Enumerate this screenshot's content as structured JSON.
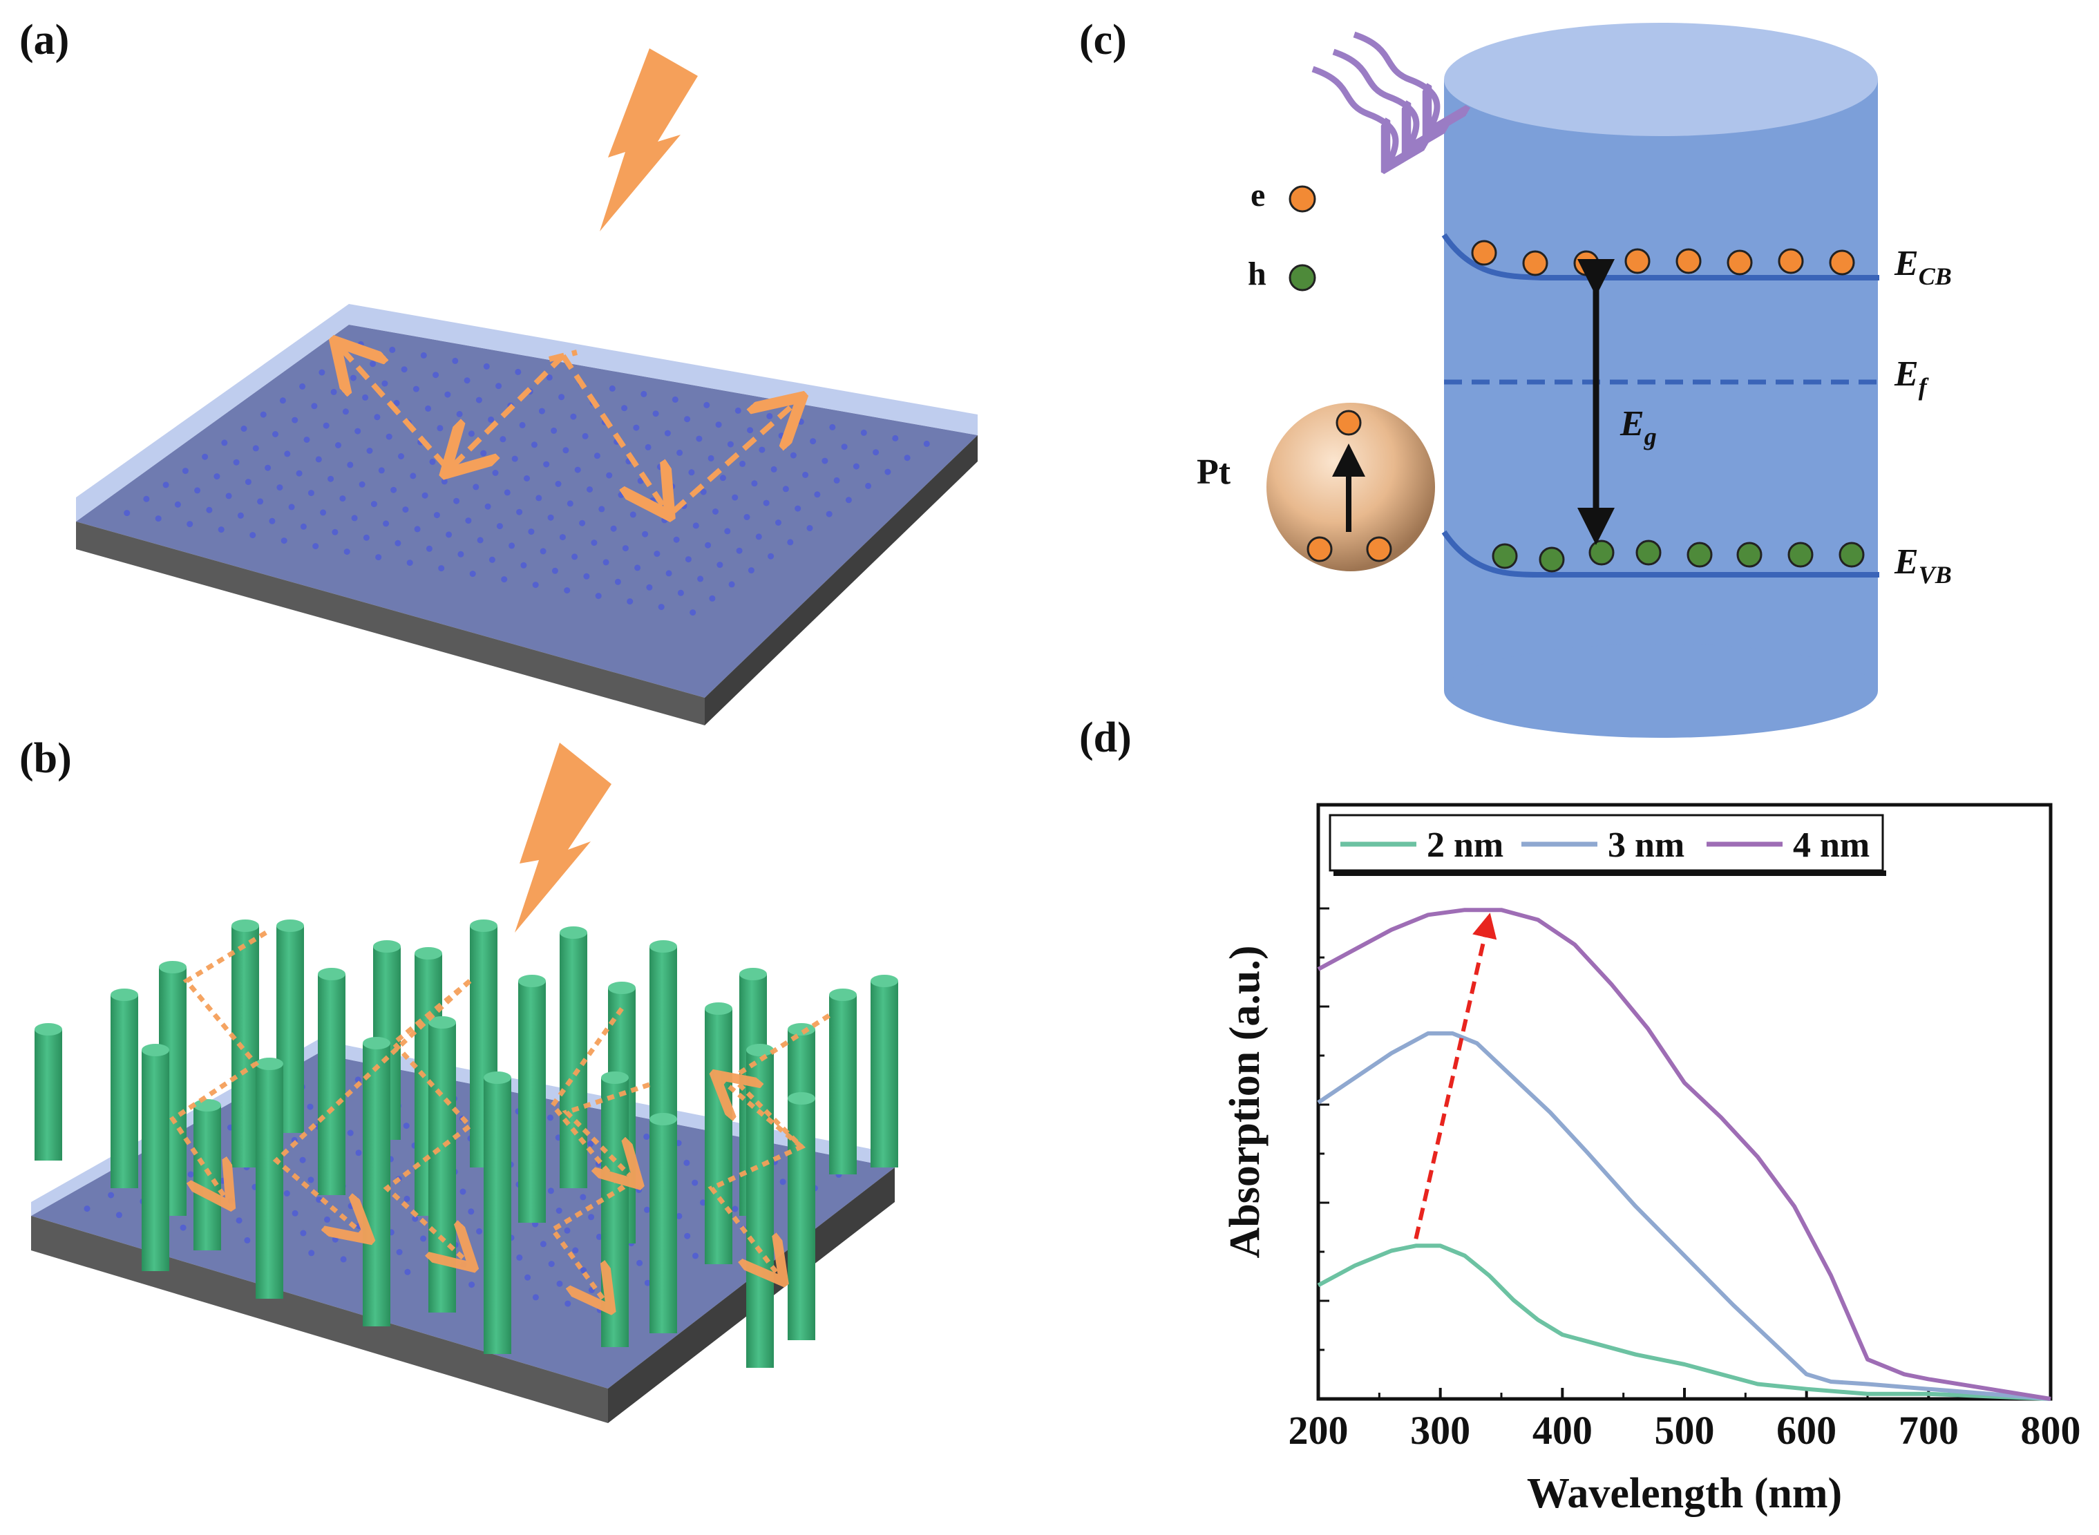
{
  "panels": {
    "a": {
      "label": "(a)"
    },
    "b": {
      "label": "(b)"
    },
    "c": {
      "label": "(c)",
      "legend": {
        "electron": "e",
        "hole": "h"
      },
      "particle_label": "Pt",
      "levels": {
        "E": "E",
        "cb_sub": "CB",
        "f_sub": "f",
        "g_sub": "g",
        "vb_sub": "VB"
      }
    },
    "d": {
      "label": "(d)"
    }
  },
  "colors": {
    "orange": "#F5A05A",
    "electron": "#F28A35",
    "hole": "#4E8A3A",
    "cylinder": "#7C9FD9",
    "cylinder_top": "#AFC4EB",
    "band": "#3A64B8",
    "nanorod": "#3CA873",
    "substrate": "#6F7BB0",
    "red_arrow": "#E8241E"
  },
  "chart_data": {
    "type": "line",
    "title": "",
    "xlabel": "Wavelength (nm)",
    "ylabel": "Absorption (a.u.)",
    "xlim": [
      200,
      800
    ],
    "ylim": [
      0,
      1.0
    ],
    "xticks": [
      200,
      300,
      400,
      500,
      600,
      700,
      800
    ],
    "legend_position": "top",
    "annotation": "red dashed arrow from 2 nm peak to 4 nm peak (red-shift)",
    "series": [
      {
        "name": "2 nm",
        "color": "#6CC2A2",
        "x": [
          200,
          230,
          260,
          280,
          300,
          320,
          340,
          360,
          380,
          400,
          430,
          460,
          500,
          530,
          560,
          600,
          650,
          700,
          750,
          800
        ],
        "y": [
          0.23,
          0.27,
          0.3,
          0.31,
          0.31,
          0.29,
          0.25,
          0.2,
          0.16,
          0.13,
          0.11,
          0.09,
          0.07,
          0.05,
          0.03,
          0.02,
          0.01,
          0.01,
          0.005,
          0.0
        ]
      },
      {
        "name": "3 nm",
        "color": "#8FA8D0",
        "x": [
          200,
          230,
          260,
          290,
          310,
          330,
          360,
          390,
          420,
          460,
          500,
          540,
          570,
          600,
          620,
          650,
          700,
          750,
          800
        ],
        "y": [
          0.6,
          0.65,
          0.7,
          0.74,
          0.74,
          0.72,
          0.65,
          0.58,
          0.5,
          0.39,
          0.29,
          0.19,
          0.12,
          0.05,
          0.035,
          0.03,
          0.02,
          0.01,
          0.0
        ]
      },
      {
        "name": "4 nm",
        "color": "#9E6DB5",
        "x": [
          200,
          230,
          260,
          290,
          320,
          350,
          380,
          410,
          440,
          470,
          500,
          530,
          560,
          590,
          620,
          650,
          680,
          700,
          750,
          800
        ],
        "y": [
          0.87,
          0.91,
          0.95,
          0.98,
          0.99,
          0.99,
          0.97,
          0.92,
          0.84,
          0.75,
          0.64,
          0.57,
          0.49,
          0.39,
          0.25,
          0.08,
          0.05,
          0.04,
          0.02,
          0.0
        ]
      }
    ]
  }
}
